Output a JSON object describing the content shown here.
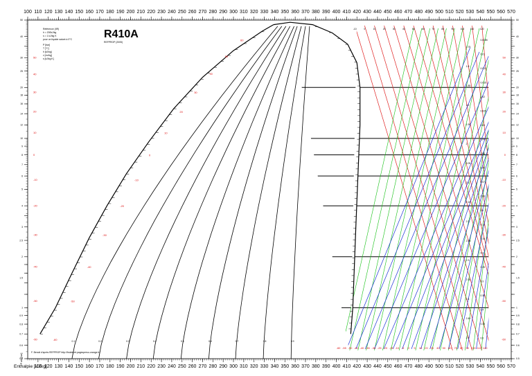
{
  "chart_data": {
    "type": "line",
    "title": "R410A",
    "subtitle": "REFPROP (2005)",
    "reference_lines": [
      "Référence (IIR)",
      "h = 200kJ/kg",
      "s = 1 kJ/kg K",
      "pour un liquide saturé à 0°C"
    ],
    "legend_units": [
      "P [bar]",
      "T [°C]",
      "h [kJ/kg]",
      "v [m³/kg]",
      "s [kJ/kg K]"
    ],
    "credit": "F. Benoit d'après REFPROP http://froidenet.pagesperso-orange.fr/",
    "xlabel": "Enthalpie [kJ/kg]",
    "ylabel": "P abs [bar]",
    "x_ticks_top": [
      100,
      110,
      120,
      130,
      140,
      150,
      160,
      170,
      180,
      190,
      200,
      210,
      220,
      230,
      240,
      250,
      260,
      270,
      280,
      290,
      300,
      310,
      320,
      330,
      340,
      350,
      360,
      370,
      380,
      390,
      400,
      410,
      420,
      430,
      440,
      450,
      460,
      470,
      480,
      490,
      500,
      510,
      520,
      530,
      540,
      550,
      560,
      570
    ],
    "x_ticks_bottom": [
      110,
      120,
      130,
      140,
      150,
      160,
      170,
      180,
      190,
      200,
      210,
      220,
      230,
      240,
      250,
      260,
      270,
      280,
      290,
      300,
      310,
      320,
      330,
      340,
      350,
      360,
      370,
      380,
      390,
      400,
      410,
      420,
      430,
      440,
      450,
      460,
      470,
      480,
      490,
      500,
      510,
      520,
      530,
      540,
      550,
      560,
      570
    ],
    "y_labels": [
      "50",
      "40",
      "30",
      "25",
      "20",
      "18",
      "16",
      "14",
      "12",
      "10",
      "9",
      "8",
      "7",
      "6",
      "5",
      "4",
      "3",
      "2.5",
      "2",
      "1.5",
      "1",
      "0.9",
      "0.8",
      "0.7",
      "0.6",
      "0.5"
    ],
    "y_ticks": [
      50,
      40,
      35,
      30,
      25,
      20,
      18,
      16,
      14,
      12,
      10,
      9,
      8,
      7,
      6,
      5,
      4,
      3.5,
      3,
      2.5,
      2,
      1.8,
      1.6,
      1.4,
      1.2,
      1,
      0.9,
      0.8,
      0.7,
      0.6,
      0.5
    ],
    "xlim": [
      100,
      570
    ],
    "ylim": [
      0.5,
      50
    ],
    "y_scale": "log",
    "grid": true,
    "isobar_lines": [
      20,
      10,
      8,
      6,
      4,
      2,
      1
    ],
    "saturation_liquid": [
      [
        112,
        0.7
      ],
      [
        127,
        1
      ],
      [
        143,
        1.6
      ],
      [
        160,
        2.6
      ],
      [
        177,
        4
      ],
      [
        196,
        6.2
      ],
      [
        218,
        9.6
      ],
      [
        242,
        15
      ],
      [
        270,
        23
      ],
      [
        300,
        33
      ],
      [
        328,
        43
      ],
      [
        339,
        47
      ]
    ],
    "saturation_vapor": [
      [
        339,
        47
      ],
      [
        355,
        48.5
      ],
      [
        377,
        47
      ],
      [
        396,
        42
      ],
      [
        411,
        36
      ],
      [
        420,
        28
      ],
      [
        423,
        20
      ],
      [
        423,
        12
      ],
      [
        421,
        6
      ],
      [
        419,
        3
      ],
      [
        416,
        1
      ],
      [
        414,
        0.7
      ]
    ],
    "quality_lines": [
      {
        "label": "0.1",
        "bottom_h": 143,
        "top_h": 343
      },
      {
        "label": "0.2",
        "bottom_h": 169,
        "top_h": 347
      },
      {
        "label": "0.3",
        "bottom_h": 196,
        "top_h": 351
      },
      {
        "label": "0.4",
        "bottom_h": 222,
        "top_h": 355
      },
      {
        "label": "0.5",
        "bottom_h": 249,
        "top_h": 359
      },
      {
        "label": "0.6",
        "bottom_h": 276,
        "top_h": 362
      },
      {
        "label": "0.7",
        "bottom_h": 302,
        "top_h": 366
      },
      {
        "label": "0.8",
        "bottom_h": 329,
        "top_h": 370
      },
      {
        "label": "0.9",
        "bottom_h": 356,
        "top_h": 374
      }
    ],
    "liquid_temps": [
      {
        "label": "-60",
        "p": 0.65,
        "h": 118
      },
      {
        "label": "-50",
        "p": 1.1,
        "h": 135
      },
      {
        "label": "-40",
        "p": 1.75,
        "h": 151
      },
      {
        "label": "-30",
        "p": 2.7,
        "h": 166
      },
      {
        "label": "-20",
        "p": 4,
        "h": 183
      },
      {
        "label": "-10",
        "p": 5.7,
        "h": 197
      },
      {
        "label": "0",
        "p": 8,
        "h": 211
      },
      {
        "label": "10",
        "p": 10.8,
        "h": 226
      },
      {
        "label": "20",
        "p": 14.4,
        "h": 241
      },
      {
        "label": "30",
        "p": 18.8,
        "h": 255
      },
      {
        "label": "40",
        "p": 24.2,
        "h": 270
      },
      {
        "label": "50",
        "p": 30.6,
        "h": 285
      },
      {
        "label": "60",
        "p": 38.3,
        "h": 300
      }
    ],
    "left_axis_temps": [
      {
        "label": "50",
        "p": 30
      },
      {
        "label": "40",
        "p": 24
      },
      {
        "label": "30",
        "p": 18.8
      },
      {
        "label": "20",
        "p": 14.4
      },
      {
        "label": "10",
        "p": 10.8
      },
      {
        "label": "0",
        "p": 8
      },
      {
        "label": "-10",
        "p": 5.7
      },
      {
        "label": "-20",
        "p": 4
      },
      {
        "label": "-30",
        "p": 2.7
      },
      {
        "label": "-40",
        "p": 1.75
      },
      {
        "label": "-50",
        "p": 1.1
      },
      {
        "label": "-60",
        "p": 0.65
      }
    ],
    "bottom_temps": [
      "-60",
      "-55",
      "-50",
      "-45",
      "-40",
      "-35",
      "-30",
      "-25",
      "-20",
      "-15",
      "-10",
      "-5",
      "0",
      "5",
      "10",
      "20",
      "30",
      "40",
      "50",
      "60",
      "70",
      "80",
      "90",
      "100",
      "110",
      "120"
    ],
    "superheat_temp_labels": [
      "-10",
      "0",
      "10",
      "20",
      "30",
      "40",
      "50",
      "60",
      "70",
      "80",
      "90",
      "100",
      "110",
      "120"
    ],
    "specific_volume_labels": [
      "0.0085",
      "0.01",
      "0.012",
      "0.015",
      "0.02",
      "0.025",
      "0.03",
      "0.04",
      "0.05",
      "0.06",
      "0.07",
      "0.08",
      "0.1",
      "0.12",
      "0.15",
      "0.2",
      "0.25",
      "0.3",
      "0.35",
      "0.4",
      "0.45",
      "0.5"
    ],
    "entropy_labels": [
      "1.75",
      "1.8",
      "1.85",
      "1.9",
      "1.95",
      "2",
      "2.05",
      "2.1",
      "2.15",
      "2.2",
      "2.25",
      "2.3",
      "2.35",
      "2.4",
      "2.45",
      "2.5"
    ],
    "right_axis_temps": [
      "50",
      "40",
      "30",
      "20",
      "10",
      "0",
      "-10",
      "-20",
      "-30",
      "-40",
      "-50",
      "-60"
    ],
    "colors": {
      "isotherm": "#e02020",
      "isochore": "#10c010",
      "isentrope": "#1a2fd6",
      "axis": "#000000",
      "quality": "#000000"
    }
  }
}
